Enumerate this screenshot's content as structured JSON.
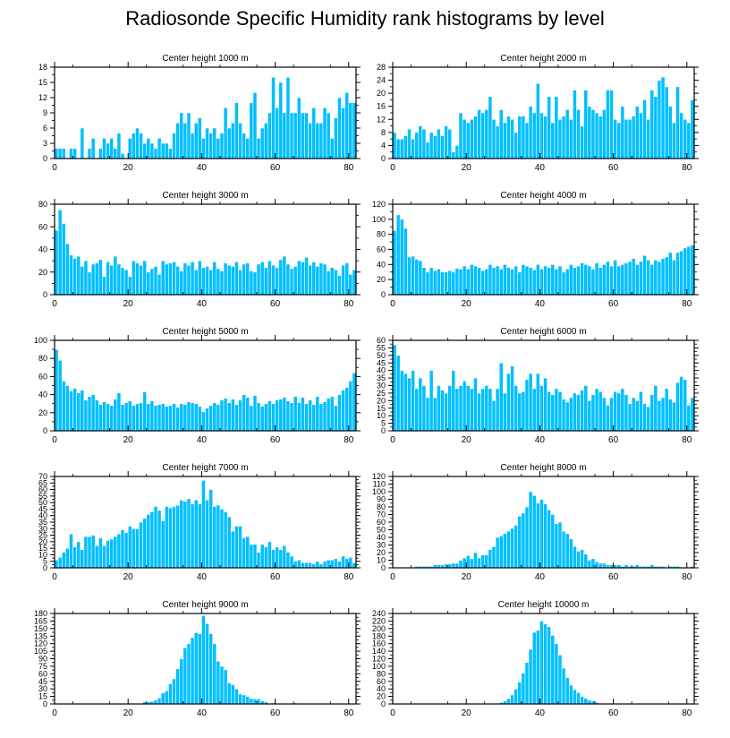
{
  "title": "Radiosonde Specific Humidity rank histograms by level",
  "colors": {
    "bar": "#00bfff",
    "bar_edge": "#ffffff",
    "axis": "#000000"
  },
  "chart_data": [
    {
      "type": "bar",
      "title": "Center height 1000 m",
      "xlim": [
        0,
        82
      ],
      "ylim": [
        0,
        18
      ],
      "xticks": [
        0,
        20,
        40,
        60,
        80
      ],
      "yticks": [
        0,
        3,
        6,
        9,
        12,
        15,
        18
      ],
      "values": [
        2,
        2,
        2,
        0,
        2,
        2,
        0,
        6,
        0,
        2,
        4,
        0,
        2,
        4,
        3,
        4,
        2,
        5,
        1,
        0,
        4,
        5,
        6,
        5,
        3,
        4,
        3,
        2,
        4,
        3,
        3,
        2,
        5,
        7,
        9,
        7,
        9,
        5,
        7,
        8,
        4,
        6,
        5,
        6,
        4,
        5,
        10,
        6,
        7,
        11,
        7,
        5,
        4,
        11,
        13,
        4,
        6,
        7,
        9,
        16,
        10,
        15,
        9,
        16,
        9,
        9,
        12,
        9,
        9,
        7,
        10,
        7,
        7,
        10,
        9,
        4,
        8,
        12,
        10,
        13,
        11,
        11
      ]
    },
    {
      "type": "bar",
      "title": "Center height 2000 m",
      "xlim": [
        0,
        82
      ],
      "ylim": [
        0,
        28
      ],
      "xticks": [
        0,
        20,
        40,
        60,
        80
      ],
      "yticks": [
        0,
        4,
        8,
        12,
        16,
        20,
        24,
        28
      ],
      "values": [
        8,
        6,
        6,
        7,
        9,
        6,
        8,
        10,
        9,
        5,
        8,
        7,
        9,
        7,
        10,
        9,
        2,
        4,
        14,
        12,
        11,
        12,
        13,
        15,
        14,
        15,
        19,
        12,
        10,
        15,
        11,
        13,
        12,
        8,
        13,
        13,
        11,
        16,
        14,
        23,
        14,
        13,
        19,
        11,
        19,
        12,
        13,
        15,
        12,
        21,
        15,
        10,
        21,
        16,
        15,
        14,
        13,
        15,
        21,
        21,
        12,
        11,
        16,
        12,
        12,
        13,
        16,
        14,
        18,
        12,
        21,
        19,
        24,
        25,
        22,
        16,
        11,
        22,
        14,
        12,
        11,
        18
      ]
    },
    {
      "type": "bar",
      "title": "Center height 3000 m",
      "xlim": [
        0,
        82
      ],
      "ylim": [
        0,
        80
      ],
      "xticks": [
        0,
        20,
        40,
        60,
        80
      ],
      "yticks": [
        0,
        20,
        40,
        60,
        80
      ],
      "values": [
        57,
        75,
        63,
        45,
        35,
        32,
        34,
        25,
        30,
        20,
        27,
        28,
        31,
        16,
        29,
        26,
        34,
        27,
        24,
        22,
        16,
        30,
        28,
        26,
        30,
        20,
        23,
        25,
        18,
        30,
        27,
        28,
        29,
        25,
        21,
        28,
        26,
        29,
        22,
        30,
        24,
        25,
        22,
        29,
        23,
        21,
        28,
        26,
        25,
        29,
        22,
        27,
        28,
        21,
        20,
        27,
        29,
        24,
        30,
        26,
        24,
        31,
        34,
        27,
        23,
        25,
        30,
        29,
        33,
        26,
        29,
        25,
        28,
        27,
        21,
        24,
        22,
        17,
        26,
        28,
        18,
        22
      ]
    },
    {
      "type": "bar",
      "title": "Center height 4000 m",
      "xlim": [
        0,
        82
      ],
      "ylim": [
        0,
        120
      ],
      "xticks": [
        0,
        20,
        40,
        60,
        80
      ],
      "yticks": [
        0,
        20,
        40,
        60,
        80,
        100,
        120
      ],
      "values": [
        85,
        106,
        100,
        88,
        50,
        51,
        47,
        45,
        36,
        30,
        36,
        32,
        34,
        30,
        30,
        32,
        30,
        35,
        34,
        38,
        34,
        40,
        38,
        36,
        32,
        34,
        40,
        36,
        38,
        34,
        40,
        36,
        34,
        38,
        30,
        40,
        38,
        36,
        33,
        40,
        34,
        38,
        36,
        40,
        34,
        38,
        30,
        34,
        40,
        36,
        38,
        42,
        40,
        38,
        34,
        42,
        36,
        40,
        44,
        38,
        46,
        38,
        40,
        42,
        44,
        48,
        40,
        44,
        52,
        46,
        40,
        46,
        44,
        48,
        50,
        56,
        46,
        56,
        58,
        62,
        64,
        66
      ]
    },
    {
      "type": "bar",
      "title": "Center height 5000 m",
      "xlim": [
        0,
        82
      ],
      "ylim": [
        0,
        100
      ],
      "xticks": [
        0,
        20,
        40,
        60,
        80
      ],
      "yticks": [
        0,
        20,
        40,
        60,
        80,
        100
      ],
      "values": [
        90,
        78,
        55,
        50,
        44,
        47,
        42,
        45,
        34,
        38,
        40,
        34,
        29,
        32,
        30,
        28,
        35,
        42,
        29,
        31,
        33,
        28,
        30,
        31,
        43,
        30,
        33,
        28,
        29,
        30,
        27,
        28,
        30,
        26,
        30,
        29,
        32,
        31,
        30,
        27,
        21,
        25,
        28,
        31,
        29,
        34,
        36,
        31,
        35,
        29,
        34,
        40,
        37,
        28,
        39,
        31,
        27,
        30,
        33,
        30,
        34,
        35,
        37,
        33,
        31,
        38,
        31,
        37,
        30,
        34,
        29,
        38,
        30,
        32,
        36,
        38,
        28,
        40,
        45,
        48,
        55,
        64
      ]
    },
    {
      "type": "bar",
      "title": "Center height 6000 m",
      "xlim": [
        0,
        82
      ],
      "ylim": [
        0,
        60
      ],
      "xticks": [
        0,
        20,
        40,
        60,
        80
      ],
      "yticks": [
        0,
        5,
        10,
        15,
        20,
        25,
        30,
        35,
        40,
        45,
        50,
        55,
        60
      ],
      "values": [
        57,
        50,
        40,
        38,
        35,
        40,
        28,
        35,
        30,
        22,
        40,
        22,
        30,
        27,
        25,
        30,
        40,
        28,
        30,
        33,
        30,
        28,
        35,
        25,
        28,
        30,
        28,
        20,
        28,
        45,
        25,
        38,
        43,
        30,
        25,
        26,
        34,
        38,
        28,
        38,
        30,
        35,
        26,
        24,
        28,
        26,
        21,
        19,
        22,
        25,
        24,
        27,
        30,
        20,
        24,
        28,
        26,
        22,
        17,
        22,
        26,
        25,
        28,
        24,
        18,
        22,
        20,
        26,
        18,
        16,
        24,
        30,
        20,
        22,
        28,
        21,
        19,
        32,
        36,
        34,
        17,
        22
      ]
    },
    {
      "type": "bar",
      "title": "Center height 7000 m",
      "xlim": [
        0,
        82
      ],
      "ylim": [
        0,
        70
      ],
      "xticks": [
        0,
        20,
        40,
        60,
        80
      ],
      "yticks": [
        0,
        5,
        10,
        15,
        20,
        25,
        30,
        35,
        40,
        45,
        50,
        55,
        60,
        65,
        70
      ],
      "values": [
        6,
        8,
        12,
        15,
        26,
        16,
        20,
        14,
        24,
        24,
        25,
        17,
        23,
        17,
        21,
        22,
        24,
        26,
        29,
        27,
        32,
        30,
        30,
        35,
        38,
        41,
        43,
        47,
        44,
        36,
        47,
        46,
        47,
        48,
        52,
        51,
        53,
        49,
        52,
        49,
        67,
        52,
        60,
        47,
        48,
        45,
        43,
        39,
        28,
        32,
        32,
        23,
        24,
        18,
        18,
        12,
        18,
        16,
        20,
        14,
        16,
        14,
        17,
        12,
        9,
        5,
        6,
        4,
        4,
        4,
        3,
        5,
        3,
        5,
        6,
        6,
        7,
        5,
        9,
        7,
        8,
        4
      ]
    },
    {
      "type": "bar",
      "title": "Center height 8000 m",
      "xlim": [
        0,
        82
      ],
      "ylim": [
        0,
        120
      ],
      "xticks": [
        0,
        20,
        40,
        60,
        80
      ],
      "yticks": [
        0,
        10,
        20,
        30,
        40,
        50,
        60,
        70,
        80,
        90,
        100,
        110,
        120
      ],
      "values": [
        0,
        0,
        0,
        0,
        0,
        0,
        2,
        2,
        2,
        2,
        2,
        4,
        4,
        4,
        5,
        5,
        6,
        6,
        10,
        13,
        16,
        12,
        20,
        13,
        17,
        17,
        24,
        28,
        40,
        42,
        45,
        48,
        52,
        56,
        68,
        72,
        80,
        100,
        95,
        85,
        90,
        84,
        76,
        70,
        58,
        60,
        48,
        45,
        38,
        28,
        22,
        24,
        18,
        10,
        12,
        8,
        6,
        6,
        4,
        4,
        4,
        4,
        2,
        4,
        2,
        2,
        4,
        2,
        2,
        2,
        4,
        2,
        2,
        2,
        0,
        2,
        2,
        2,
        0,
        0,
        0,
        2
      ]
    },
    {
      "type": "bar",
      "title": "Center height 9000 m",
      "xlim": [
        0,
        82
      ],
      "ylim": [
        0,
        180
      ],
      "xticks": [
        0,
        20,
        40,
        60,
        80
      ],
      "yticks": [
        0,
        15,
        30,
        45,
        60,
        75,
        90,
        105,
        120,
        135,
        150,
        165,
        180
      ],
      "values": [
        0,
        0,
        0,
        0,
        0,
        0,
        0,
        0,
        0,
        0,
        0,
        0,
        0,
        0,
        0,
        0,
        0,
        0,
        0,
        0,
        0,
        0,
        0,
        0,
        4,
        4,
        5,
        8,
        12,
        22,
        26,
        40,
        50,
        70,
        90,
        112,
        120,
        132,
        142,
        140,
        176,
        160,
        140,
        120,
        85,
        75,
        68,
        42,
        38,
        30,
        20,
        18,
        15,
        11,
        10,
        10,
        6,
        4,
        0,
        2,
        0,
        0,
        0,
        0,
        0,
        2,
        0,
        0,
        0,
        0,
        0,
        0,
        0,
        0,
        0,
        0,
        0,
        0,
        0,
        0,
        0,
        0
      ]
    },
    {
      "type": "bar",
      "title": "Center height 10000 m",
      "xlim": [
        0,
        82
      ],
      "ylim": [
        0,
        240
      ],
      "xticks": [
        0,
        20,
        40,
        60,
        80
      ],
      "yticks": [
        0,
        20,
        40,
        60,
        80,
        100,
        120,
        140,
        160,
        180,
        200,
        220,
        240
      ],
      "values": [
        0,
        0,
        0,
        0,
        0,
        0,
        0,
        0,
        0,
        0,
        0,
        0,
        0,
        0,
        0,
        0,
        0,
        0,
        0,
        0,
        0,
        0,
        0,
        0,
        0,
        0,
        0,
        0,
        2,
        4,
        8,
        14,
        24,
        40,
        58,
        82,
        110,
        145,
        190,
        195,
        220,
        212,
        205,
        182,
        160,
        130,
        95,
        70,
        50,
        38,
        30,
        20,
        15,
        10,
        8,
        4,
        2,
        2,
        0,
        0,
        0,
        0,
        0,
        0,
        0,
        0,
        0,
        0,
        0,
        0,
        0,
        0,
        0,
        0,
        0,
        0,
        0,
        0,
        0,
        0,
        0,
        0
      ]
    }
  ]
}
